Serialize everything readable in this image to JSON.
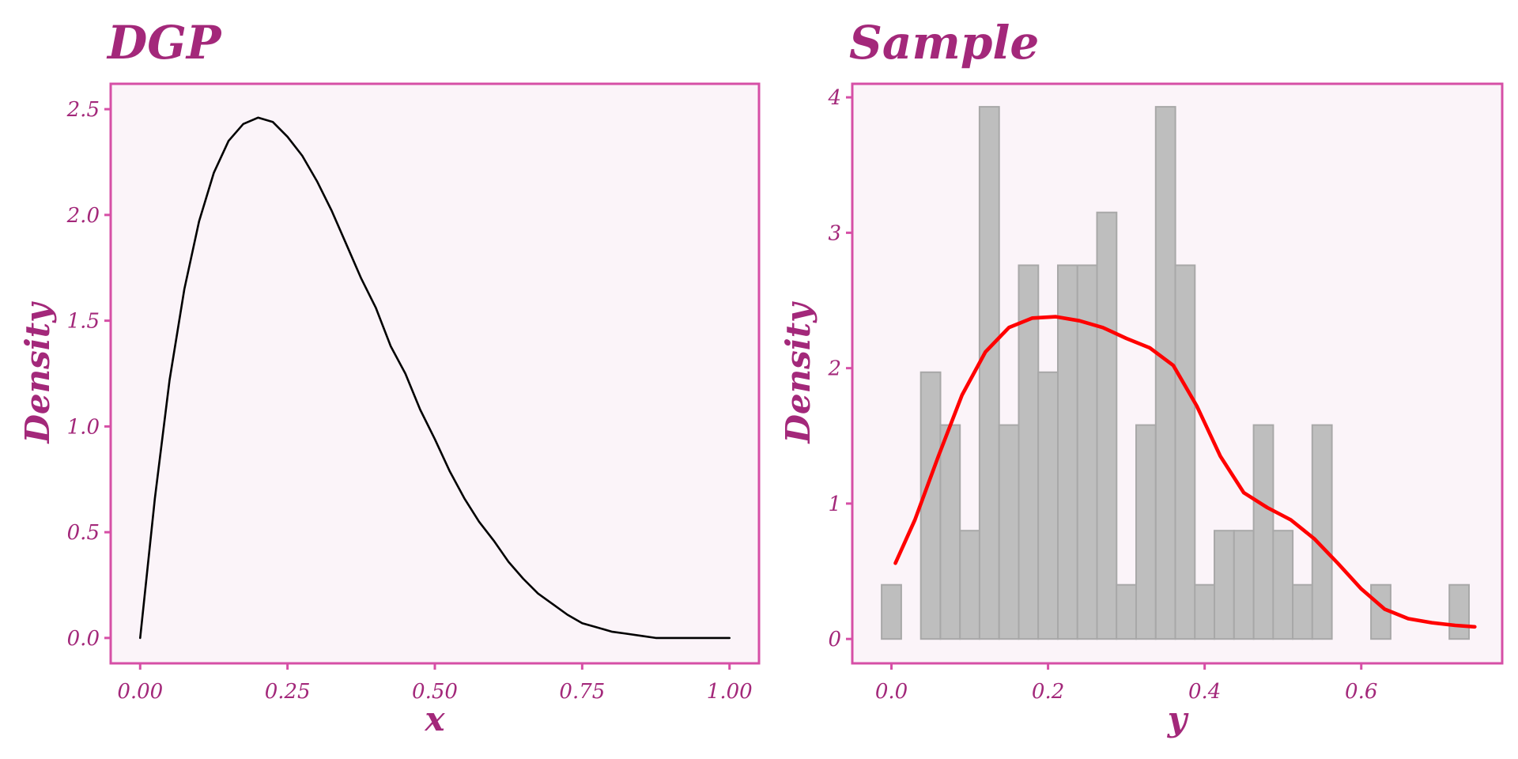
{
  "colors": {
    "title": "#a3287a",
    "frame": "#d64fa6",
    "panel_background": "#fbf4f9",
    "density_line": "#000000",
    "histogram_fill": "#bebebe",
    "histogram_edge": "#a8a8a8",
    "kde_line": "#ff0000"
  },
  "chart_data": [
    {
      "type": "line",
      "title": "DGP",
      "xlabel": "x",
      "ylabel": "Density",
      "xlim": [
        -0.05,
        1.05
      ],
      "ylim": [
        -0.12,
        2.62
      ],
      "xticks": [
        0.0,
        0.25,
        0.5,
        0.75,
        1.0
      ],
      "xtick_labels": [
        "0.00",
        "0.25",
        "0.50",
        "0.75",
        "1.00"
      ],
      "yticks": [
        0.0,
        0.5,
        1.0,
        1.5,
        2.0,
        2.5
      ],
      "ytick_labels": [
        "0.0",
        "0.5",
        "1.0",
        "1.5",
        "2.0",
        "2.5"
      ],
      "grid": false,
      "series": [
        {
          "distribution": "Beta(2, 5)",
          "x": [
            0.0,
            0.025,
            0.05,
            0.075,
            0.1,
            0.125,
            0.15,
            0.175,
            0.2,
            0.225,
            0.25,
            0.275,
            0.3,
            0.325,
            0.35,
            0.375,
            0.4,
            0.425,
            0.45,
            0.475,
            0.5,
            0.525,
            0.55,
            0.575,
            0.6,
            0.625,
            0.65,
            0.675,
            0.7,
            0.725,
            0.75,
            0.775,
            0.8,
            0.825,
            0.85,
            0.875,
            0.9,
            0.925,
            0.95,
            0.975,
            1.0
          ],
          "y": [
            0.0,
            0.66,
            1.22,
            1.65,
            1.97,
            2.2,
            2.35,
            2.43,
            2.46,
            2.44,
            2.37,
            2.28,
            2.16,
            2.02,
            1.86,
            1.7,
            1.56,
            1.38,
            1.25,
            1.08,
            0.94,
            0.79,
            0.66,
            0.55,
            0.46,
            0.36,
            0.28,
            0.21,
            0.16,
            0.11,
            0.07,
            0.05,
            0.03,
            0.02,
            0.01,
            0.0,
            0.0,
            0.0,
            0.0,
            0.0,
            0.0
          ]
        }
      ]
    },
    {
      "type": "bar",
      "title": "Sample",
      "xlabel": "y",
      "ylabel": "Density",
      "xlim": [
        -0.05,
        0.78
      ],
      "ylim": [
        -0.18,
        4.1
      ],
      "xticks": [
        0.0,
        0.2,
        0.4,
        0.6
      ],
      "xtick_labels": [
        "0.0",
        "0.2",
        "0.4",
        "0.6"
      ],
      "yticks": [
        0,
        1,
        2,
        3,
        4
      ],
      "ytick_labels": [
        "0",
        "1",
        "2",
        "3",
        "4"
      ],
      "grid": false,
      "histogram": {
        "bin_start": -0.0125,
        "bin_width": 0.025,
        "densities": [
          0.4,
          0.0,
          1.97,
          1.58,
          0.8,
          3.93,
          1.58,
          2.76,
          1.97,
          2.76,
          2.76,
          3.15,
          0.4,
          1.58,
          3.93,
          2.76,
          0.4,
          0.8,
          0.8,
          1.58,
          0.8,
          0.4,
          1.58,
          0.0,
          0.0,
          0.4,
          0.0,
          0.0,
          0.0,
          0.4
        ]
      },
      "series": [
        {
          "kind": "kernel density",
          "x": [
            0.005,
            0.03,
            0.06,
            0.09,
            0.12,
            0.15,
            0.18,
            0.21,
            0.24,
            0.27,
            0.3,
            0.33,
            0.36,
            0.39,
            0.42,
            0.45,
            0.48,
            0.51,
            0.54,
            0.57,
            0.6,
            0.63,
            0.66,
            0.69,
            0.72,
            0.745
          ],
          "y": [
            0.56,
            0.88,
            1.35,
            1.8,
            2.12,
            2.3,
            2.37,
            2.38,
            2.35,
            2.3,
            2.22,
            2.15,
            2.02,
            1.72,
            1.35,
            1.08,
            0.97,
            0.88,
            0.74,
            0.56,
            0.37,
            0.22,
            0.15,
            0.12,
            0.1,
            0.09
          ]
        }
      ]
    }
  ]
}
